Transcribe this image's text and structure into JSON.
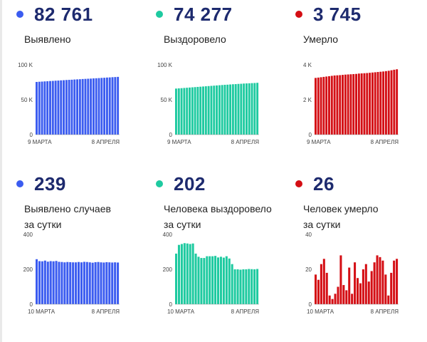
{
  "panels": [
    {
      "value": "82 761",
      "label": [
        "Выявлено"
      ],
      "color": "#3b5cf0",
      "yticks": [
        {
          "v": 100000,
          "t": "100 K"
        },
        {
          "v": 50000,
          "t": "50 K"
        },
        {
          "v": 0,
          "t": "0"
        }
      ],
      "xstart": "9 МАРТА",
      "xend": "8 АПРЕЛЯ"
    },
    {
      "value": "74 277",
      "label": [
        "Выздоровело"
      ],
      "color": "#1ecaa0",
      "yticks": [
        {
          "v": 100000,
          "t": "100 K"
        },
        {
          "v": 50000,
          "t": "50 K"
        },
        {
          "v": 0,
          "t": "0"
        }
      ],
      "xstart": "9 МАРТА",
      "xend": "8 АПРЕЛЯ"
    },
    {
      "value": "3 745",
      "label": [
        "Умерло"
      ],
      "color": "#d40e14",
      "yticks": [
        {
          "v": 4000,
          "t": "4 K"
        },
        {
          "v": 2000,
          "t": "2 K"
        },
        {
          "v": 0,
          "t": "0"
        }
      ],
      "xstart": "9 МАРТА",
      "xend": "8 АПРЕЛЯ"
    },
    {
      "value": "239",
      "label": [
        "Выявлено случаев",
        "за сутки"
      ],
      "color": "#3b5cf0",
      "yticks": [
        {
          "v": 400,
          "t": "400"
        },
        {
          "v": 200,
          "t": "200"
        },
        {
          "v": 0,
          "t": "0"
        }
      ],
      "xstart": "10 МАРТА",
      "xend": "8 АПРЕЛЯ"
    },
    {
      "value": "202",
      "label": [
        "Человека выздоровело",
        "за сутки"
      ],
      "color": "#1ecaa0",
      "yticks": [
        {
          "v": 400,
          "t": "400"
        },
        {
          "v": 200,
          "t": "200"
        },
        {
          "v": 0,
          "t": "0"
        }
      ],
      "xstart": "10 МАРТА",
      "xend": "8 АПРЕЛЯ"
    },
    {
      "value": "26",
      "label": [
        "Человек умерло",
        "за сутки"
      ],
      "color": "#d40e14",
      "yticks": [
        {
          "v": 40,
          "t": "40"
        },
        {
          "v": 20,
          "t": "20"
        },
        {
          "v": 0,
          "t": "0"
        }
      ],
      "xstart": "10 МАРТА",
      "xend": "8 АПРЕЛЯ"
    }
  ],
  "chart_data": [
    {
      "type": "bar",
      "ylim": [
        0,
        100000
      ],
      "categories_start": "9 МАРТА",
      "categories_end": "8 АПРЕЛЯ",
      "values": [
        75500,
        75800,
        76000,
        76300,
        76500,
        76800,
        77000,
        77300,
        77500,
        77800,
        78000,
        78300,
        78500,
        78700,
        79000,
        79200,
        79400,
        79700,
        79900,
        80100,
        80300,
        80600,
        80800,
        81000,
        81300,
        81500,
        81800,
        82000,
        82300,
        82500,
        82761
      ]
    },
    {
      "type": "bar",
      "ylim": [
        0,
        100000
      ],
      "categories_start": "9 МАРТА",
      "categories_end": "8 АПРЕЛЯ",
      "values": [
        66000,
        66300,
        66600,
        66900,
        67200,
        67500,
        67800,
        68100,
        68400,
        68700,
        69000,
        69300,
        69600,
        69900,
        70200,
        70500,
        70800,
        71100,
        71400,
        71600,
        71900,
        72200,
        72400,
        72700,
        72900,
        73200,
        73400,
        73600,
        73800,
        74000,
        74277
      ]
    },
    {
      "type": "bar",
      "ylim": [
        0,
        4000
      ],
      "categories_start": "9 МАРТА",
      "categories_end": "8 АПРЕЛЯ",
      "values": [
        3250,
        3270,
        3290,
        3310,
        3330,
        3350,
        3370,
        3390,
        3400,
        3410,
        3425,
        3440,
        3450,
        3460,
        3470,
        3480,
        3500,
        3510,
        3520,
        3530,
        3545,
        3560,
        3575,
        3590,
        3605,
        3620,
        3640,
        3660,
        3690,
        3720,
        3745
      ]
    },
    {
      "type": "bar",
      "ylim": [
        0,
        400
      ],
      "categories_start": "10 МАРТА",
      "categories_end": "8 АПРЕЛЯ",
      "values": [
        258,
        247,
        246,
        250,
        244,
        247,
        246,
        248,
        243,
        242,
        240,
        242,
        241,
        240,
        240,
        242,
        240,
        243,
        242,
        240,
        238,
        241,
        242,
        240,
        239,
        241,
        240,
        239,
        240,
        239
      ]
    },
    {
      "type": "bar",
      "ylim": [
        0,
        400
      ],
      "categories_start": "10 МАРТА",
      "categories_end": "8 АПРЕЛЯ",
      "values": [
        290,
        340,
        345,
        350,
        348,
        345,
        348,
        290,
        272,
        265,
        265,
        275,
        275,
        275,
        277,
        268,
        272,
        267,
        275,
        262,
        230,
        200,
        200,
        198,
        200,
        200,
        202,
        201,
        200,
        202
      ]
    },
    {
      "type": "bar",
      "ylim": [
        0,
        40
      ],
      "categories_start": "10 МАРТА",
      "categories_end": "8 АПРЕЛЯ",
      "values": [
        17,
        14,
        23,
        26,
        18,
        5,
        3,
        6,
        10,
        28,
        11,
        8,
        21,
        6,
        24,
        15,
        12,
        20,
        23,
        13,
        19,
        24,
        28,
        27,
        25,
        17,
        5,
        18,
        25,
        26
      ]
    }
  ]
}
